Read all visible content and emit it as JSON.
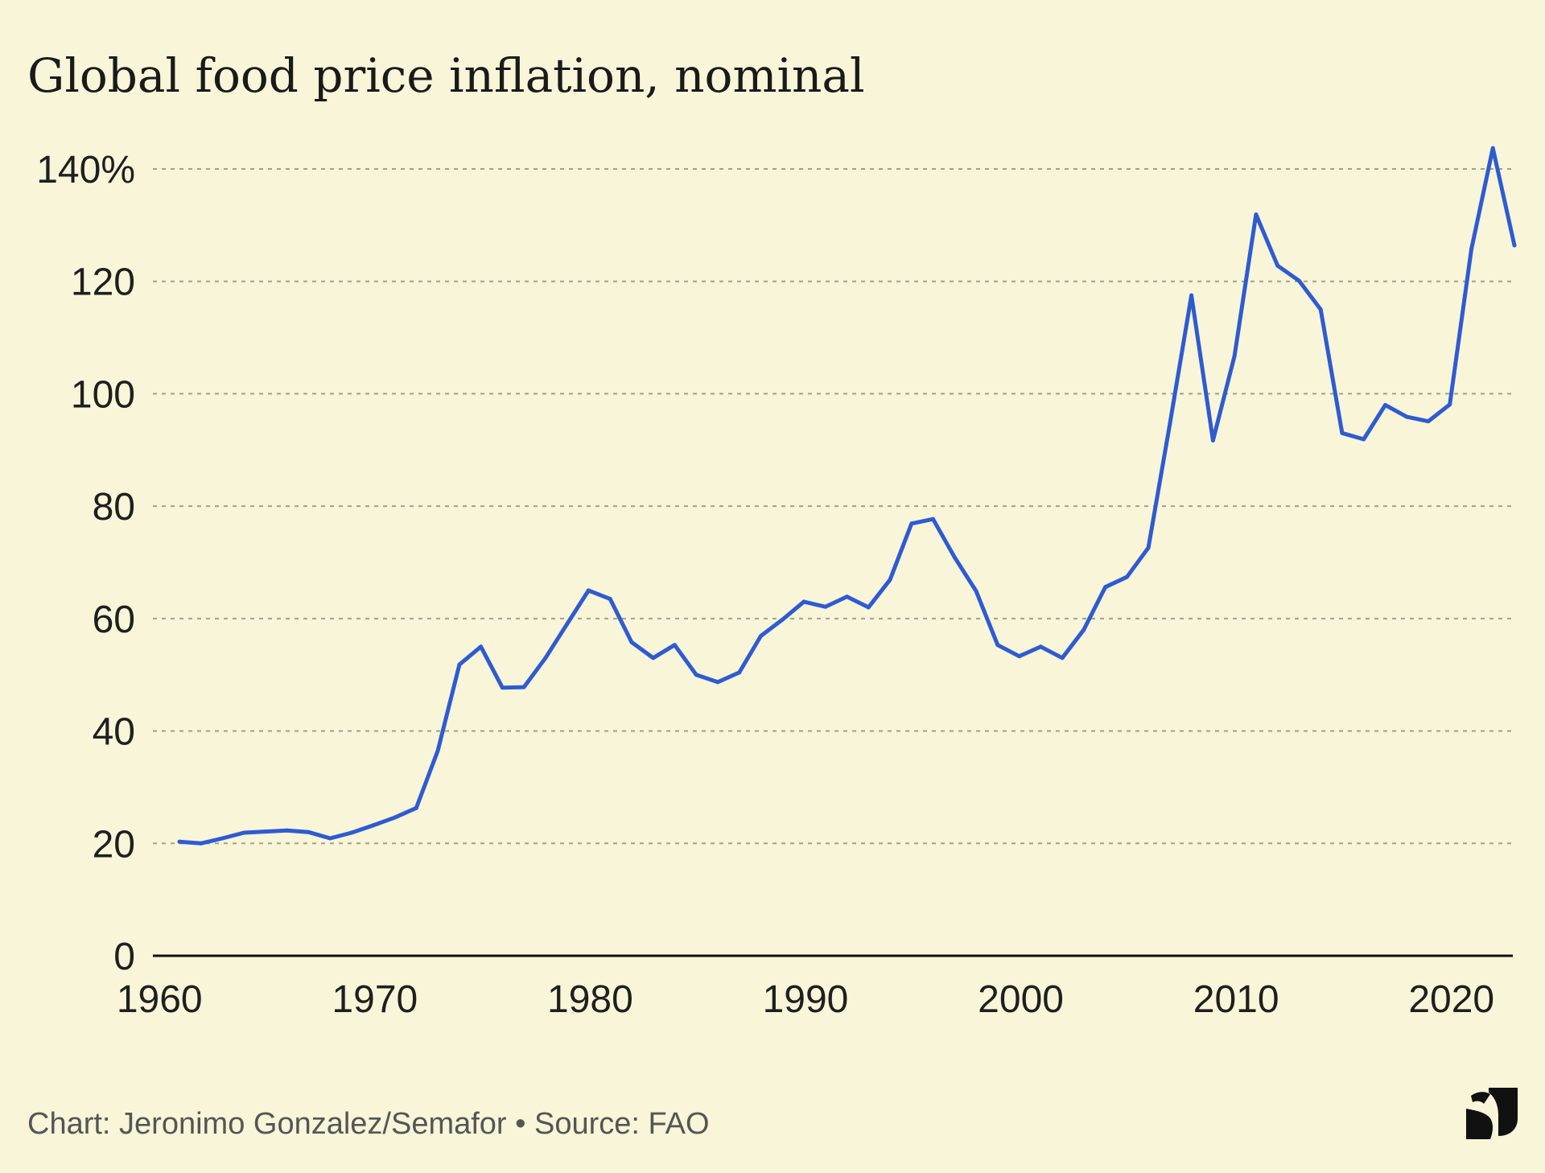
{
  "title": "Global food price inflation, nominal",
  "footer": {
    "credit": "Chart: Jeronimo Gonzalez/Semafor • Source: FAO",
    "logo_icon": "semafor-logo-icon"
  },
  "colors": {
    "background": "#f8f5d8",
    "line": "#2f5bd1",
    "grid": "#a3a08b",
    "axis": "#111111",
    "text": "#1f1f1f"
  },
  "chart_data": {
    "type": "line",
    "title": "Global food price inflation, nominal",
    "xlabel": "",
    "ylabel": "",
    "xlim": [
      1960,
      2023
    ],
    "ylim": [
      0,
      140
    ],
    "grid": true,
    "legend": "none",
    "x_ticks": [
      {
        "value": 1960,
        "label": "1960"
      },
      {
        "value": 1970,
        "label": "1970"
      },
      {
        "value": 1980,
        "label": "1980"
      },
      {
        "value": 1990,
        "label": "1990"
      },
      {
        "value": 2000,
        "label": "2000"
      },
      {
        "value": 2010,
        "label": "2010"
      },
      {
        "value": 2020,
        "label": "2020"
      }
    ],
    "y_ticks": [
      {
        "value": 0,
        "label": "0"
      },
      {
        "value": 20,
        "label": "20"
      },
      {
        "value": 40,
        "label": "40"
      },
      {
        "value": 60,
        "label": "60"
      },
      {
        "value": 80,
        "label": "80"
      },
      {
        "value": 100,
        "label": "100"
      },
      {
        "value": 120,
        "label": "120"
      },
      {
        "value": 140,
        "label": "140%"
      }
    ],
    "series": [
      {
        "color": "#2f5bd1",
        "x": [
          1961,
          1962,
          1963,
          1964,
          1965,
          1966,
          1967,
          1968,
          1969,
          1970,
          1971,
          1972,
          1973,
          1974,
          1975,
          1976,
          1977,
          1978,
          1979,
          1980,
          1981,
          1982,
          1983,
          1984,
          1985,
          1986,
          1987,
          1988,
          1989,
          1990,
          1991,
          1992,
          1993,
          1994,
          1995,
          1996,
          1997,
          1998,
          1999,
          2000,
          2001,
          2002,
          2003,
          2004,
          2005,
          2006,
          2007,
          2008,
          2009,
          2010,
          2011,
          2012,
          2013,
          2014,
          2015,
          2016,
          2017,
          2018,
          2019,
          2020,
          2021,
          2022,
          2023
        ],
        "values": [
          20.3,
          20.0,
          20.9,
          21.9,
          22.1,
          22.3,
          22.0,
          20.9,
          21.9,
          23.2,
          24.6,
          26.3,
          36.5,
          51.8,
          55.0,
          47.7,
          47.8,
          53.0,
          59.0,
          65.0,
          63.5,
          55.8,
          53.0,
          55.3,
          50.0,
          48.7,
          50.4,
          56.9,
          59.8,
          63.0,
          62.1,
          63.9,
          62.0,
          66.9,
          76.9,
          77.7,
          70.9,
          64.9,
          55.3,
          53.3,
          55.0,
          53.0,
          58.0,
          65.6,
          67.4,
          72.6,
          94.7,
          117.5,
          91.7,
          106.7,
          131.9,
          122.8,
          120.1,
          115.0,
          93.0,
          91.9,
          98.0,
          95.9,
          95.1,
          98.1,
          125.7,
          143.7,
          126.4
        ]
      }
    ]
  }
}
